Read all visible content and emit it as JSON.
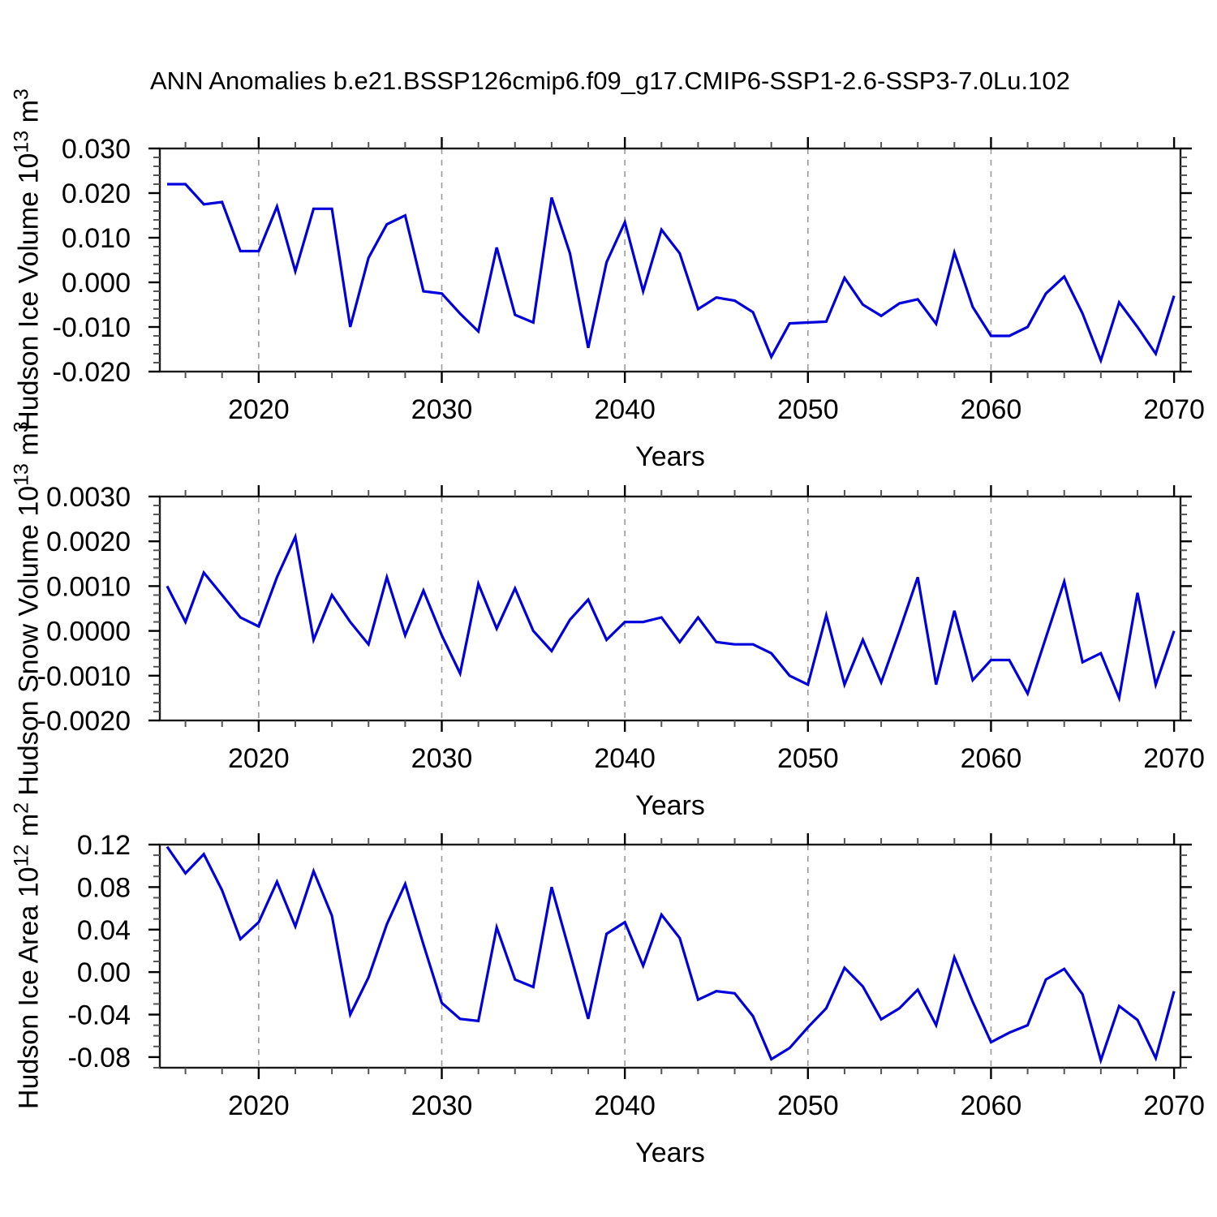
{
  "title": "ANN Anomalies b.e21.BSSP126cmip6.f09_g17.CMIP6-SSP1-2.6-SSP3-7.0Lu.102",
  "xlabel": "Years",
  "chart_data": {
    "type": "line",
    "line_color": "#0000dd",
    "grid_color": "#999999",
    "axis_color": "#1a1a1a",
    "legend": "none",
    "grid_years": [
      2020,
      2030,
      2040,
      2050,
      2060
    ],
    "xlim": [
      2014.6,
      2070.35
    ],
    "xticks": [
      2020,
      2030,
      2040,
      2050,
      2060,
      2070
    ],
    "xtick_labels": [
      "2020",
      "2030",
      "2040",
      "2050",
      "2060",
      "2070"
    ],
    "xtick_minor_step": 2,
    "x": [
      2015,
      2016,
      2017,
      2018,
      2019,
      2020,
      2021,
      2022,
      2023,
      2024,
      2025,
      2026,
      2027,
      2028,
      2029,
      2030,
      2031,
      2032,
      2033,
      2034,
      2035,
      2036,
      2037,
      2038,
      2039,
      2040,
      2041,
      2042,
      2043,
      2044,
      2045,
      2046,
      2047,
      2048,
      2049,
      2050,
      2051,
      2052,
      2053,
      2054,
      2055,
      2056,
      2057,
      2058,
      2059,
      2060,
      2061,
      2062,
      2063,
      2064,
      2065,
      2066,
      2067,
      2068,
      2069,
      2070
    ],
    "panels": [
      {
        "name": "hudson-ice-volume",
        "ylabel": {
          "base": "Hudson Ice Volume 10",
          "exp": "13",
          "mid": " m",
          "exp2": "3"
        },
        "ylim": [
          -0.02,
          0.03
        ],
        "yticks": [
          0.03,
          0.02,
          0.01,
          0.0,
          -0.01,
          -0.02
        ],
        "ytick_labels": [
          "0.030",
          "0.020",
          "0.010",
          "0.000",
          "-0.010",
          "-0.020"
        ],
        "ytick_minor_step": 0.002,
        "values": [
          0.022,
          0.022,
          0.0175,
          0.018,
          0.007,
          0.007,
          0.017,
          0.0025,
          0.0165,
          0.0165,
          -0.01,
          0.0055,
          0.013,
          0.015,
          -0.002,
          -0.0025,
          -0.007,
          -0.011,
          0.0078,
          -0.0073,
          -0.009,
          0.019,
          0.0065,
          -0.0147,
          0.0045,
          0.0135,
          -0.002,
          0.0118,
          0.0065,
          -0.006,
          -0.0034,
          -0.0041,
          -0.0067,
          -0.0167,
          -0.0092,
          -0.009,
          -0.0088,
          0.001,
          -0.005,
          -0.0075,
          -0.0047,
          -0.0038,
          -0.0093,
          0.0067,
          -0.0055,
          -0.012,
          -0.012,
          -0.01,
          -0.0025,
          0.0013,
          -0.007,
          -0.0175,
          -0.0045,
          -0.01,
          -0.016,
          -0.003
        ]
      },
      {
        "name": "hudson-snow-volume",
        "ylabel": {
          "base": "Hudson Snow Volume 10",
          "exp": "13",
          "mid": " m",
          "exp2": "3"
        },
        "ylim": [
          -0.002,
          0.003
        ],
        "yticks": [
          0.003,
          0.002,
          0.001,
          0.0,
          -0.001,
          -0.002
        ],
        "ytick_labels": [
          "0.0030",
          "0.0020",
          "0.0010",
          "0.0000",
          "-0.0010",
          "-0.0020"
        ],
        "ytick_minor_step": 0.0002,
        "values": [
          0.001,
          0.0002,
          0.0013,
          0.0008,
          0.0003,
          0.0001,
          0.0012,
          0.0021,
          -0.0002,
          0.0008,
          0.0002,
          -0.0003,
          0.0012,
          -0.0001,
          0.0009,
          -0.0001,
          -0.00095,
          0.00105,
          5e-05,
          0.00095,
          0.0,
          -0.00045,
          0.00025,
          0.0007,
          -0.0002,
          0.0002,
          0.0002,
          0.0003,
          -0.00025,
          0.0003,
          -0.00025,
          -0.0003,
          -0.0003,
          -0.0005,
          -0.001,
          -0.0012,
          0.00035,
          -0.0012,
          -0.0002,
          -0.00115,
          0.0,
          0.0012,
          -0.0012,
          0.00045,
          -0.0011,
          -0.00065,
          -0.00065,
          -0.0014,
          -0.00015,
          0.0011,
          -0.0007,
          -0.0005,
          -0.0015,
          0.00085,
          -0.0012,
          0.0
        ]
      },
      {
        "name": "hudson-ice-area",
        "ylabel": {
          "base": "Hudson Ice Area 10",
          "exp": "12",
          "mid": " m",
          "exp2": "2"
        },
        "ylim": [
          -0.09,
          0.12
        ],
        "yticks": [
          0.12,
          0.08,
          0.04,
          0.0,
          -0.04,
          -0.08
        ],
        "ytick_labels": [
          "0.12",
          "0.08",
          "0.04",
          "0.00",
          "-0.04",
          "-0.08"
        ],
        "ytick_minor_step": 0.01,
        "values": [
          0.118,
          0.093,
          0.111,
          0.077,
          0.031,
          0.047,
          0.085,
          0.043,
          0.095,
          0.053,
          -0.04,
          -0.005,
          0.045,
          0.083,
          0.026,
          -0.029,
          -0.044,
          -0.046,
          0.042,
          -0.007,
          -0.014,
          0.08,
          0.018,
          -0.044,
          0.036,
          0.047,
          0.006,
          0.054,
          0.032,
          -0.026,
          -0.018,
          -0.02,
          -0.0415,
          -0.082,
          -0.0715,
          -0.052,
          -0.034,
          0.004,
          -0.0135,
          -0.0445,
          -0.034,
          -0.0165,
          -0.05,
          0.014,
          -0.028,
          -0.066,
          -0.057,
          -0.05,
          -0.007,
          0.003,
          -0.021,
          -0.083,
          -0.032,
          -0.045,
          -0.081,
          -0.018
        ]
      }
    ]
  }
}
